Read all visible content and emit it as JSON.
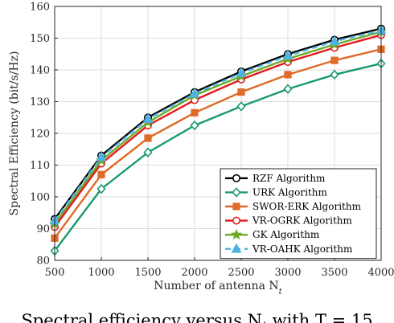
{
  "chart_data": {
    "type": "line",
    "xlabel": "Number of antenna N_t",
    "ylabel": "Spectral Efficiency (bit/s/Hz)",
    "x": [
      500,
      1000,
      1500,
      2000,
      2500,
      3000,
      3500,
      4000
    ],
    "xticks": [
      "500",
      "1000",
      "1500",
      "2000",
      "2500",
      "3000",
      "3500",
      "4000"
    ],
    "yticks": [
      "80",
      "90",
      "100",
      "110",
      "120",
      "130",
      "140",
      "150",
      "160"
    ],
    "xlim": [
      500,
      4000
    ],
    "ylim": [
      80,
      160
    ],
    "grid": true,
    "legend_position": "bottom-right",
    "series": [
      {
        "name": "RZF Algorithm",
        "color": "#000000",
        "marker": "circle",
        "dash": "solid",
        "values": [
          93,
          113,
          125,
          133,
          139.5,
          145,
          149.5,
          153
        ]
      },
      {
        "name": "URK Algorithm",
        "color": "#1a9a70",
        "marker": "diamond",
        "dash": "solid",
        "values": [
          83,
          102.5,
          114,
          122.5,
          128.5,
          134,
          138.5,
          142
        ]
      },
      {
        "name": "SWOR-ERK Algorithm",
        "color": "#e06a28",
        "marker": "square",
        "dash": "solid",
        "values": [
          87,
          107,
          118.5,
          126.5,
          133,
          138.5,
          143,
          146.5
        ]
      },
      {
        "name": "VR-OGRK Algorithm",
        "color": "#e31a1c",
        "marker": "circle",
        "dash": "solid",
        "values": [
          90.5,
          110.5,
          122.5,
          130.5,
          137,
          142.5,
          147,
          151
        ]
      },
      {
        "name": "GK Algorithm",
        "color": "#6aaa2a",
        "marker": "star",
        "dash": "solid",
        "values": [
          91.5,
          111.5,
          123.5,
          132,
          138,
          143.5,
          148,
          152
        ]
      },
      {
        "name": "VR-OAHK Algorithm",
        "color": "#4db3e6",
        "marker": "triangle",
        "dash": "dashed",
        "values": [
          92.5,
          112.5,
          124.5,
          132.5,
          139,
          144.5,
          149,
          152.5
        ]
      }
    ]
  },
  "caption": "Spectral efficiency versus N_t with T = 15"
}
